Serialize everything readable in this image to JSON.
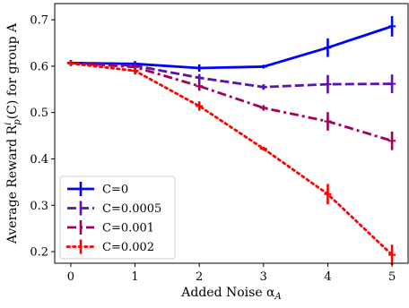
{
  "chart_data": {
    "type": "line",
    "xlabel": "Added Noise α",
    "xlabel_sub": "A",
    "ylabel": "Average Reward R",
    "ylabel_sub": "p",
    "ylabel_sup": "i",
    "ylabel_tail": "(C) for group A",
    "x": [
      0,
      1,
      2,
      3,
      4,
      5
    ],
    "xlim": [
      -0.25,
      5.25
    ],
    "ylim": [
      0.175,
      0.735
    ],
    "xticks": [
      0,
      1,
      2,
      3,
      4,
      5
    ],
    "yticks": [
      0.2,
      0.3,
      0.4,
      0.5,
      0.6,
      0.7
    ],
    "grid": false,
    "legend_position": "lower-left",
    "series": [
      {
        "name": "C=0",
        "color": "#0000ff",
        "dash": "solid",
        "values": [
          0.607,
          0.605,
          0.596,
          0.599,
          0.64,
          0.686
        ],
        "errors": [
          0.006,
          0.006,
          0.008,
          0.004,
          0.02,
          0.022
        ]
      },
      {
        "name": "C=0.0005",
        "color": "#5b0fb5",
        "dash": "dashed",
        "values": [
          0.607,
          0.601,
          0.575,
          0.555,
          0.561,
          0.562
        ],
        "errors": [
          0.006,
          0.006,
          0.008,
          0.006,
          0.02,
          0.02
        ]
      },
      {
        "name": "C=0.001",
        "color": "#a0005a",
        "dash": "dashdot",
        "values": [
          0.607,
          0.598,
          0.557,
          0.51,
          0.481,
          0.439
        ],
        "errors": [
          0.006,
          0.008,
          0.01,
          0.006,
          0.02,
          0.02
        ]
      },
      {
        "name": "C=0.002",
        "color": "#ff0000",
        "dash": "dotted",
        "values": [
          0.606,
          0.59,
          0.514,
          0.422,
          0.324,
          0.193
        ],
        "errors": [
          0.006,
          0.008,
          0.01,
          0.004,
          0.022,
          0.022
        ]
      }
    ]
  }
}
